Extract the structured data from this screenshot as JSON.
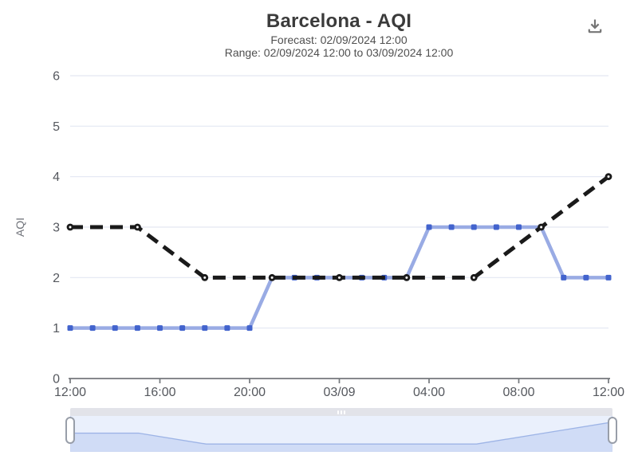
{
  "header": {
    "title": "Barcelona - AQI",
    "subtitle_forecast": "Forecast: 02/09/2024 12:00",
    "subtitle_range": "Range: 02/09/2024 12:00 to 03/09/2024 12:00"
  },
  "icons": {
    "download": "download-icon"
  },
  "colors": {
    "title": "#3b3b3b",
    "subtitle": "#4f4f4f",
    "grid": "#e3e7f2",
    "axis": "#74777c",
    "tick_label": "#55585e",
    "blue_line": "#99abe4",
    "blue_marker": "#4263cd",
    "black_line": "#1a1a1a",
    "nav_fill": "#d0dcf6",
    "nav_line": "#9db4e6",
    "nav_bg": "#eaf0fc"
  },
  "chart_data": {
    "type": "line",
    "title": "Barcelona - AQI",
    "subtitle": [
      "Forecast: 02/09/2024 12:00",
      "Range: 02/09/2024 12:00 to 03/09/2024 12:00"
    ],
    "xlabel": "",
    "ylabel": "AQI",
    "ylim": [
      0,
      6
    ],
    "y_ticks": [
      0,
      1,
      2,
      3,
      4,
      5,
      6
    ],
    "x_range_hours": 24,
    "x_tick_hours": [
      0,
      4,
      8,
      12,
      16,
      20,
      24
    ],
    "x_tick_labels": [
      "12:00",
      "16:00",
      "20:00",
      "03/09",
      "04:00",
      "08:00",
      "12:00"
    ],
    "grid": true,
    "legend": false,
    "series": [
      {
        "name": "aqi-hourly-blue-line",
        "line_style": "solid",
        "marker": "square",
        "color": "#99abe4",
        "marker_color": "#4263cd",
        "x_hours": [
          0,
          1,
          2,
          3,
          4,
          5,
          6,
          7,
          8,
          9,
          10,
          11,
          12,
          13,
          14,
          15,
          16,
          17,
          18,
          19,
          20,
          21,
          22,
          23,
          24
        ],
        "values": [
          1,
          1,
          1,
          1,
          1,
          1,
          1,
          1,
          1,
          2,
          2,
          2,
          2,
          2,
          2,
          2,
          3,
          3,
          3,
          3,
          3,
          3,
          2,
          2,
          2
        ]
      },
      {
        "name": "aqi-forecast-black-dashed-line",
        "line_style": "dashed",
        "marker": "circle",
        "color": "#1a1a1a",
        "marker_color": "#1a1a1a",
        "x_hours": [
          0,
          3,
          6,
          9,
          12,
          15,
          18,
          21,
          24
        ],
        "values": [
          3,
          3,
          2,
          2,
          2,
          2,
          2,
          3,
          4
        ]
      }
    ],
    "navigator": {
      "shadow_series": "aqi-forecast-black-dashed-line",
      "range_selected_hours": [
        0,
        24
      ]
    }
  }
}
